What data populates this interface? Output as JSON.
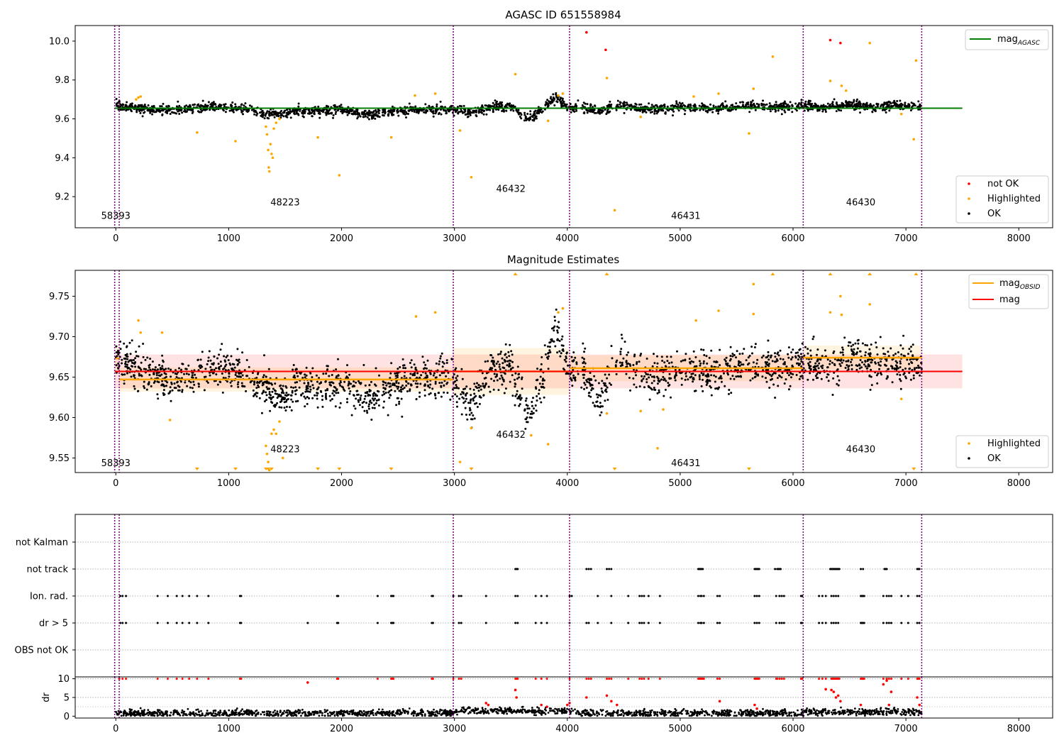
{
  "chart_data": [
    {
      "type": "scatter",
      "title": "AGASC ID 651558984",
      "xlim": [
        -360,
        8300
      ],
      "ylim": [
        9.04,
        10.08
      ],
      "x_ticks": [
        "0",
        "1000",
        "2000",
        "3000",
        "4000",
        "5000",
        "6000",
        "7000",
        "8000"
      ],
      "y_ticks": [
        "9.2",
        "9.4",
        "9.6",
        "9.8",
        "10.0"
      ],
      "series": [
        {
          "name": "not OK",
          "color": "#ff0000"
        },
        {
          "name": "Highlighted",
          "color": "#ffa500"
        },
        {
          "name": "OK",
          "color": "#000000"
        }
      ],
      "reference_lines": [
        {
          "name": "mag",
          "subscript": "AGASC",
          "value": 9.655,
          "color": "#008000"
        }
      ],
      "obsid_boundaries": [
        -10,
        30,
        2990,
        4020,
        6090,
        7140
      ],
      "obsid_labels": [
        {
          "text": "58393",
          "x": 0,
          "y": 9.085
        },
        {
          "text": "48223",
          "x": 1500,
          "y": 9.155
        },
        {
          "text": "46432",
          "x": 3500,
          "y": 9.225
        },
        {
          "text": "46431",
          "x": 5050,
          "y": 9.085
        },
        {
          "text": "46430",
          "x": 6600,
          "y": 9.155
        }
      ],
      "ok_trend": [
        [
          0,
          9.67
        ],
        [
          100,
          9.66
        ],
        [
          300,
          9.65
        ],
        [
          500,
          9.645
        ],
        [
          700,
          9.655
        ],
        [
          900,
          9.66
        ],
        [
          1100,
          9.655
        ],
        [
          1300,
          9.63
        ],
        [
          1450,
          9.625
        ],
        [
          1600,
          9.64
        ],
        [
          1800,
          9.64
        ],
        [
          2000,
          9.645
        ],
        [
          2200,
          9.62
        ],
        [
          2400,
          9.635
        ],
        [
          2600,
          9.645
        ],
        [
          2800,
          9.65
        ],
        [
          3000,
          9.645
        ],
        [
          3150,
          9.63
        ],
        [
          3300,
          9.66
        ],
        [
          3500,
          9.665
        ],
        [
          3650,
          9.6
        ],
        [
          3800,
          9.66
        ],
        [
          3900,
          9.71
        ],
        [
          4000,
          9.66
        ],
        [
          4150,
          9.655
        ],
        [
          4300,
          9.64
        ],
        [
          4450,
          9.675
        ],
        [
          4700,
          9.65
        ],
        [
          5000,
          9.66
        ],
        [
          5300,
          9.655
        ],
        [
          5600,
          9.665
        ],
        [
          5900,
          9.66
        ],
        [
          6100,
          9.665
        ],
        [
          6300,
          9.66
        ],
        [
          6500,
          9.675
        ],
        [
          6700,
          9.66
        ],
        [
          6900,
          9.67
        ],
        [
          7140,
          9.66
        ]
      ],
      "highlighted_points": [
        [
          1330,
          9.56
        ],
        [
          1340,
          9.52
        ],
        [
          1350,
          9.44
        ],
        [
          1355,
          9.35
        ],
        [
          1360,
          9.33
        ],
        [
          1370,
          9.47
        ],
        [
          1380,
          9.42
        ],
        [
          1390,
          9.4
        ],
        [
          1400,
          9.55
        ],
        [
          1420,
          9.58
        ],
        [
          1450,
          9.6
        ],
        [
          720,
          9.53
        ],
        [
          1060,
          9.485
        ],
        [
          1790,
          9.505
        ],
        [
          1980,
          9.31
        ],
        [
          2440,
          9.505
        ],
        [
          3050,
          9.54
        ],
        [
          3150,
          9.3
        ],
        [
          3540,
          9.83
        ],
        [
          3830,
          9.59
        ],
        [
          4350,
          9.81
        ],
        [
          4420,
          9.13
        ],
        [
          4650,
          9.61
        ],
        [
          5340,
          9.73
        ],
        [
          5610,
          9.525
        ],
        [
          5650,
          9.755
        ],
        [
          5820,
          9.92
        ],
        [
          6330,
          9.795
        ],
        [
          6430,
          9.77
        ],
        [
          6680,
          9.99
        ],
        [
          6960,
          9.625
        ],
        [
          7070,
          9.495
        ],
        [
          7090,
          9.9
        ],
        [
          180,
          9.7
        ],
        [
          200,
          9.71
        ],
        [
          220,
          9.715
        ],
        [
          2650,
          9.72
        ],
        [
          2830,
          9.73
        ],
        [
          3920,
          9.72
        ],
        [
          3960,
          9.73
        ],
        [
          6470,
          9.745
        ],
        [
          5120,
          9.715
        ]
      ],
      "not_ok_points": [
        [
          4170,
          10.045
        ],
        [
          4340,
          9.955
        ],
        [
          6330,
          10.005
        ],
        [
          6420,
          9.99
        ]
      ]
    },
    {
      "type": "scatter",
      "title": "Magnitude Estimates",
      "xlim": [
        -360,
        8300
      ],
      "ylim": [
        9.532,
        9.782
      ],
      "x_ticks": [
        "0",
        "1000",
        "2000",
        "3000",
        "4000",
        "5000",
        "6000",
        "7000",
        "8000"
      ],
      "y_ticks": [
        "9.55",
        "9.60",
        "9.65",
        "9.70",
        "9.75"
      ],
      "series": [
        {
          "name": "Highlighted",
          "color": "#ffa500"
        },
        {
          "name": "OK",
          "color": "#000000"
        }
      ],
      "reference_lines": [
        {
          "name": "mag",
          "subscript": "OBSID",
          "color": "#ffa500"
        },
        {
          "name": "mag",
          "value": 9.657,
          "band": [
            9.636,
            9.678
          ],
          "color": "#ff0000"
        }
      ],
      "obsid_means": [
        {
          "x0": 0,
          "x1": 30,
          "value": 9.673,
          "band": [
            9.655,
            9.69
          ]
        },
        {
          "x0": 30,
          "x1": 2990,
          "value": 9.647,
          "band": [
            9.632,
            9.662
          ]
        },
        {
          "x0": 2990,
          "x1": 4020,
          "value": 9.657,
          "band": [
            9.628,
            9.686
          ]
        },
        {
          "x0": 4020,
          "x1": 6090,
          "value": 9.661,
          "band": [
            9.645,
            9.677
          ]
        },
        {
          "x0": 6090,
          "x1": 7140,
          "value": 9.674,
          "band": [
            9.659,
            9.689
          ]
        }
      ],
      "obsid_boundaries": [
        -10,
        30,
        2990,
        4020,
        6090,
        7140
      ],
      "obsid_labels": [
        {
          "text": "58393",
          "x": 0,
          "y": 9.54
        },
        {
          "text": "48223",
          "x": 1500,
          "y": 9.557
        },
        {
          "text": "46432",
          "x": 3500,
          "y": 9.575
        },
        {
          "text": "46431",
          "x": 5050,
          "y": 9.54
        },
        {
          "text": "46430",
          "x": 6600,
          "y": 9.557
        }
      ],
      "ok_trend": [
        [
          0,
          9.68
        ],
        [
          100,
          9.665
        ],
        [
          300,
          9.655
        ],
        [
          500,
          9.645
        ],
        [
          700,
          9.655
        ],
        [
          900,
          9.665
        ],
        [
          1100,
          9.655
        ],
        [
          1300,
          9.635
        ],
        [
          1450,
          9.625
        ],
        [
          1600,
          9.64
        ],
        [
          1800,
          9.635
        ],
        [
          2000,
          9.645
        ],
        [
          2200,
          9.625
        ],
        [
          2400,
          9.635
        ],
        [
          2600,
          9.645
        ],
        [
          2800,
          9.65
        ],
        [
          3000,
          9.645
        ],
        [
          3150,
          9.61
        ],
        [
          3300,
          9.66
        ],
        [
          3500,
          9.665
        ],
        [
          3650,
          9.6
        ],
        [
          3800,
          9.66
        ],
        [
          3900,
          9.71
        ],
        [
          4000,
          9.66
        ],
        [
          4150,
          9.655
        ],
        [
          4300,
          9.625
        ],
        [
          4450,
          9.68
        ],
        [
          4700,
          9.65
        ],
        [
          5000,
          9.66
        ],
        [
          5300,
          9.655
        ],
        [
          5600,
          9.665
        ],
        [
          5900,
          9.66
        ],
        [
          6100,
          9.67
        ],
        [
          6300,
          9.66
        ],
        [
          6500,
          9.68
        ],
        [
          6700,
          9.665
        ],
        [
          6900,
          9.67
        ],
        [
          7140,
          9.665
        ]
      ],
      "highlighted_points": [
        [
          1330,
          9.565
        ],
        [
          1340,
          9.555
        ],
        [
          1350,
          9.545
        ],
        [
          1360,
          9.535
        ],
        [
          1380,
          9.58
        ],
        [
          1400,
          9.585
        ],
        [
          1420,
          9.58
        ],
        [
          1450,
          9.595
        ],
        [
          1480,
          9.55
        ],
        [
          480,
          9.597
        ],
        [
          3150,
          9.587
        ],
        [
          3680,
          9.578
        ],
        [
          3830,
          9.567
        ],
        [
          4350,
          9.605
        ],
        [
          4650,
          9.608
        ],
        [
          4800,
          9.562
        ],
        [
          4850,
          9.61
        ],
        [
          3920,
          9.73
        ],
        [
          3960,
          9.735
        ],
        [
          200,
          9.72
        ],
        [
          220,
          9.705
        ],
        [
          410,
          9.705
        ],
        [
          2660,
          9.725
        ],
        [
          2830,
          9.73
        ],
        [
          5140,
          9.72
        ],
        [
          5340,
          9.732
        ],
        [
          5650,
          9.765
        ],
        [
          5650,
          9.728
        ],
        [
          6330,
          9.73
        ],
        [
          6420,
          9.75
        ],
        [
          6430,
          9.727
        ],
        [
          6680,
          9.74
        ],
        [
          6960,
          9.623
        ],
        [
          3050,
          9.545
        ]
      ],
      "clipped_low_x": [
        720,
        1060,
        1330,
        1350,
        1380,
        1790,
        1980,
        2440,
        3150,
        4420,
        5610,
        7070
      ],
      "clipped_high_x": [
        3540,
        4350,
        5820,
        6330,
        6680,
        7090
      ]
    },
    {
      "type": "scatter",
      "title": "",
      "xlim": [
        -360,
        8300
      ],
      "x_ticks": [
        "0",
        "1000",
        "2000",
        "3000",
        "4000",
        "5000",
        "6000",
        "7000",
        "8000"
      ],
      "flag_rows": [
        "not Kalman",
        "not track",
        "Ion. rad.",
        "dr > 5",
        "OBS not OK"
      ],
      "flag_points": {
        "not track": [
          3540,
          3550,
          3560,
          4170,
          4190,
          4210,
          4350,
          4370,
          4390,
          5160,
          5170,
          5180,
          5190,
          5200,
          5660,
          5670,
          5680,
          5690,
          5700,
          5840,
          5860,
          5870,
          5880,
          5890,
          6330,
          6340,
          6350,
          6360,
          6370,
          6380,
          6390,
          6400,
          6410,
          6600,
          6620,
          6810,
          6820,
          6830,
          7100,
          7110,
          7120
        ],
        "Ion. rad.": [
          40,
          60,
          90,
          370,
          460,
          540,
          590,
          650,
          720,
          820,
          1100,
          1110,
          1960,
          1970,
          2320,
          2440,
          2450,
          2460,
          2800,
          2810,
          2990,
          3040,
          3060,
          3280,
          3540,
          3560,
          3720,
          3770,
          3820,
          4020,
          4040,
          4270,
          4390,
          4540,
          4640,
          4660,
          4680,
          4720,
          4820,
          5160,
          5180,
          5190,
          5210,
          5330,
          5350,
          5660,
          5680,
          5700,
          5850,
          5880,
          5900,
          5920,
          6070,
          6080,
          6230,
          6260,
          6290,
          6340,
          6360,
          6380,
          6400,
          6600,
          6610,
          6620,
          6630,
          6800,
          6830,
          6850,
          6870,
          6960,
          7020,
          7100,
          7120
        ],
        "dr > 5": [
          40,
          60,
          90,
          370,
          460,
          540,
          590,
          650,
          720,
          820,
          1100,
          1110,
          1700,
          1960,
          1970,
          2320,
          2440,
          2450,
          2460,
          2800,
          2810,
          2990,
          3040,
          3060,
          3280,
          3540,
          3560,
          3720,
          3770,
          3820,
          4020,
          4170,
          4190,
          4270,
          4390,
          4540,
          4640,
          4660,
          4680,
          4720,
          4820,
          5160,
          5180,
          5190,
          5210,
          5330,
          5350,
          5660,
          5680,
          5700,
          5850,
          5880,
          5900,
          5920,
          6070,
          6080,
          6230,
          6260,
          6290,
          6340,
          6360,
          6380,
          6400,
          6600,
          6610,
          6620,
          6630,
          6800,
          6830,
          6850,
          6870,
          6960,
          7020,
          7100,
          7120
        ]
      }
    },
    {
      "type": "scatter",
      "title": "",
      "ylabel": "dr",
      "xlim": [
        -360,
        8300
      ],
      "ylim": [
        -0.5,
        10.5
      ],
      "x_ticks": [
        "0",
        "1000",
        "2000",
        "3000",
        "4000",
        "5000",
        "6000",
        "7000",
        "8000"
      ],
      "y_ticks": [
        "0",
        "5",
        "10"
      ],
      "ok_range": [
        0.2,
        2.5
      ],
      "red_at_10_x": [
        30,
        60,
        90,
        370,
        460,
        540,
        590,
        650,
        720,
        820,
        1100,
        1110,
        1960,
        1970,
        2320,
        2440,
        2450,
        2460,
        2800,
        2810,
        2990,
        3040,
        3060,
        3540,
        3550,
        3560,
        3720,
        3770,
        3820,
        4020,
        4170,
        4190,
        4210,
        4350,
        4370,
        4390,
        4540,
        4640,
        4660,
        4680,
        4720,
        4820,
        5160,
        5170,
        5180,
        5190,
        5200,
        5210,
        5330,
        5350,
        5660,
        5670,
        5680,
        5690,
        5700,
        5850,
        5860,
        5880,
        5900,
        5920,
        6070,
        6080,
        6230,
        6260,
        6290,
        6340,
        6350,
        6360,
        6370,
        6380,
        6390,
        6400,
        6410,
        6600,
        6610,
        6620,
        6630,
        6800,
        6830,
        6850,
        6870,
        6960,
        7020,
        7100,
        7110,
        7120
      ],
      "red_points": [
        [
          1700,
          9
        ],
        [
          3280,
          3.5
        ],
        [
          3300,
          3
        ],
        [
          3540,
          7
        ],
        [
          3550,
          5
        ],
        [
          3770,
          3
        ],
        [
          3820,
          2.5
        ],
        [
          4020,
          3.5
        ],
        [
          4000,
          3
        ],
        [
          4170,
          5
        ],
        [
          4350,
          5.5
        ],
        [
          4390,
          4
        ],
        [
          4440,
          3
        ],
        [
          5350,
          4
        ],
        [
          5660,
          3
        ],
        [
          5680,
          2
        ],
        [
          6290,
          7.2
        ],
        [
          6340,
          7
        ],
        [
          6360,
          6.5
        ],
        [
          6380,
          5
        ],
        [
          6400,
          5.5
        ],
        [
          6420,
          4
        ],
        [
          6600,
          3
        ],
        [
          6800,
          8.5
        ],
        [
          6830,
          9.5
        ],
        [
          6850,
          3
        ],
        [
          6870,
          6.5
        ],
        [
          7100,
          5
        ],
        [
          7120,
          3
        ]
      ]
    }
  ]
}
